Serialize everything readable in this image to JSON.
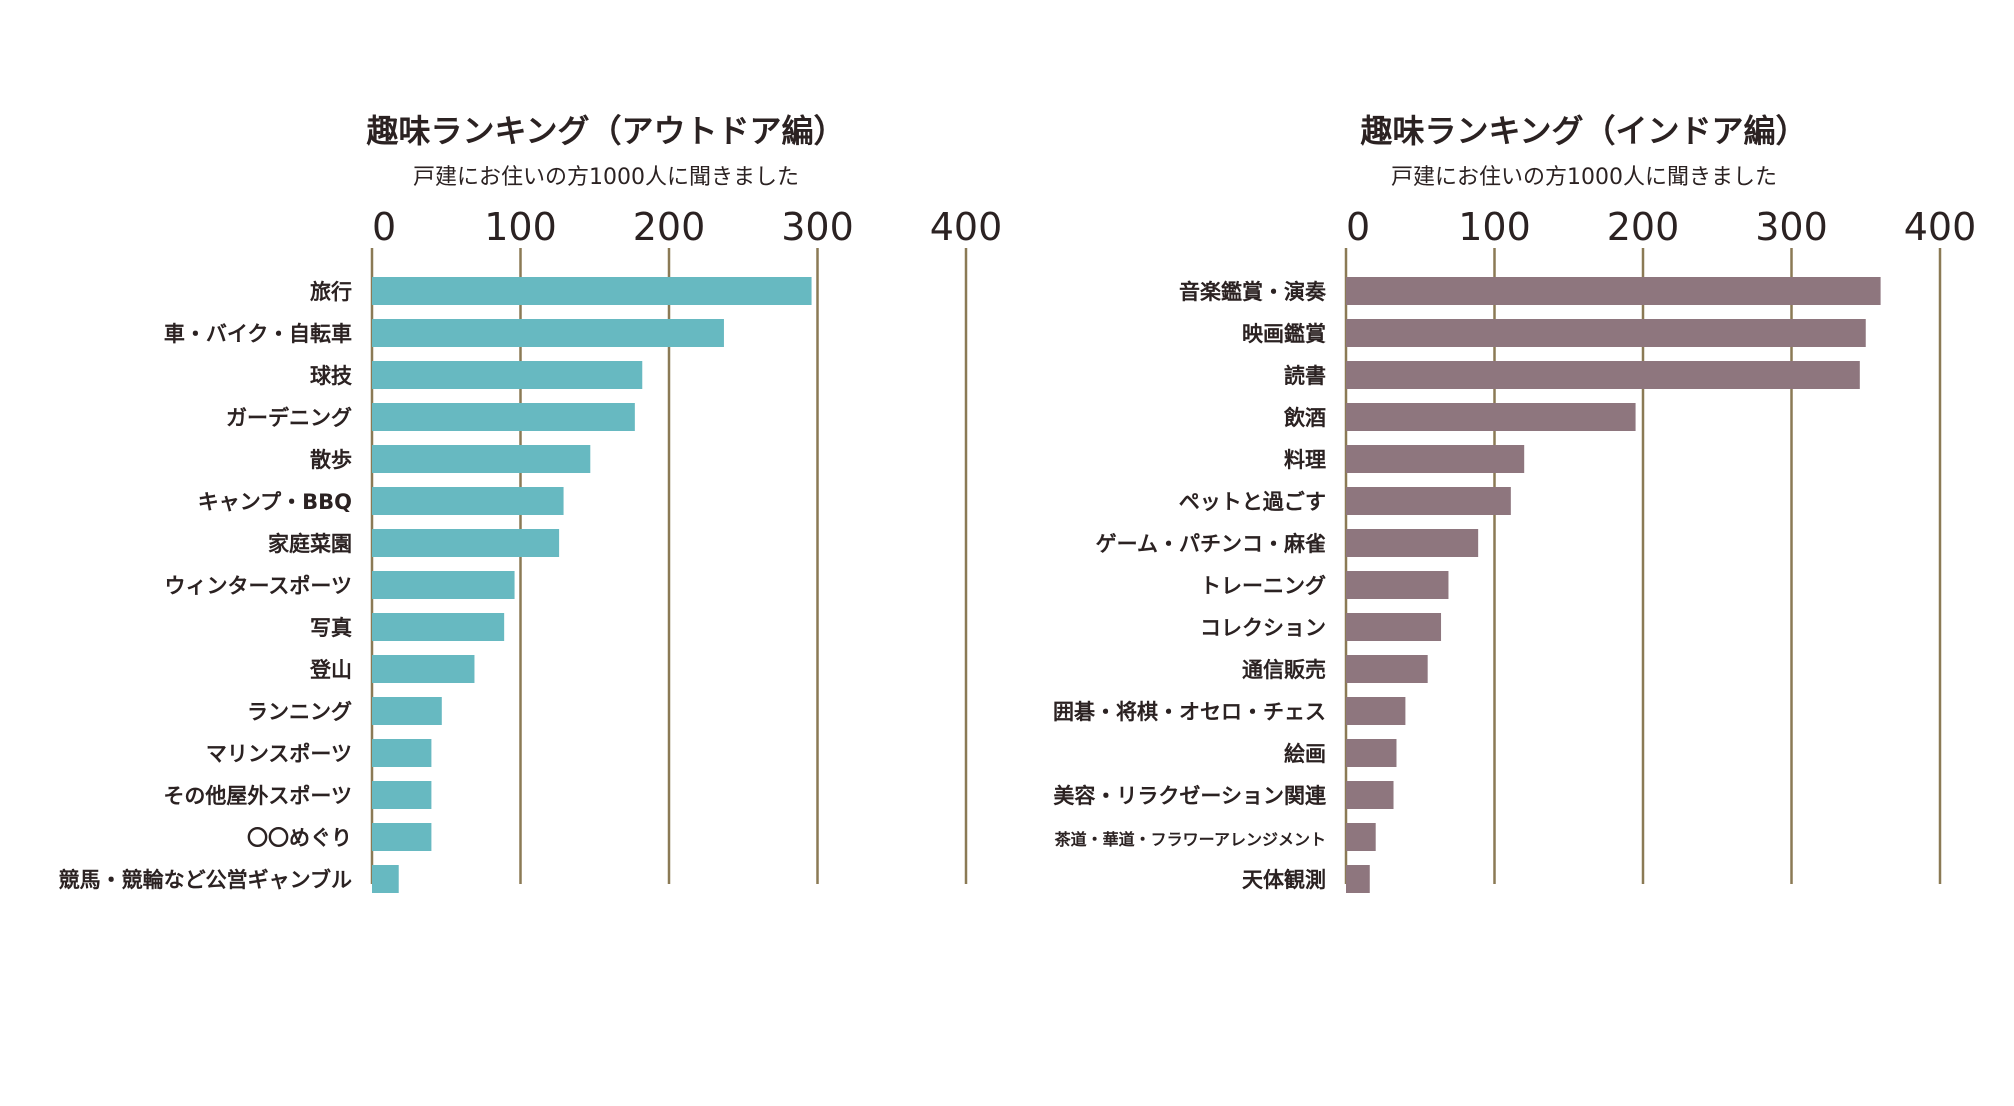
{
  "chart_data": [
    {
      "type": "bar",
      "orientation": "horizontal",
      "title": "趣味ランキング（アウトドア編）",
      "subtitle": "戸建にお住いの方1000人に聞きました",
      "xlim": [
        0,
        400
      ],
      "ticks": [
        "0",
        "100",
        "200",
        "300",
        "400"
      ],
      "grid": true,
      "color": "#67b9c1",
      "categories": [
        "旅行",
        "車・バイク・自転車",
        "球技",
        "ガーデニング",
        "散歩",
        "キャンプ・BBQ",
        "家庭菜園",
        "ウィンタースポーツ",
        "写真",
        "登山",
        "ランニング",
        "マリンスポーツ",
        "その他屋外スポーツ",
        "〇〇めぐり",
        "競馬・競輪など公営ギャンブル"
      ],
      "values": [
        296,
        237,
        182,
        177,
        147,
        129,
        126,
        96,
        89,
        69,
        47,
        40,
        40,
        40,
        18
      ]
    },
    {
      "type": "bar",
      "orientation": "horizontal",
      "title": "趣味ランキング（インドア編）",
      "subtitle": "戸建にお住いの方1000人に聞きました",
      "xlim": [
        0,
        400
      ],
      "ticks": [
        "0",
        "100",
        "200",
        "300",
        "400"
      ],
      "grid": true,
      "color": "#8e767e",
      "categories": [
        "音楽鑑賞・演奏",
        "映画鑑賞",
        "読書",
        "飲酒",
        "料理",
        "ペットと過ごす",
        "ゲーム・パチンコ・麻雀",
        "トレーニング",
        "コレクション",
        "通信販売",
        "囲碁・将棋・オセロ・チェス",
        "絵画",
        "美容・リラクゼーション関連",
        "茶道・華道・フラワーアレンジメント",
        "天体観測"
      ],
      "values": [
        360,
        350,
        346,
        195,
        120,
        111,
        89,
        69,
        64,
        55,
        40,
        34,
        32,
        20,
        16
      ]
    }
  ]
}
